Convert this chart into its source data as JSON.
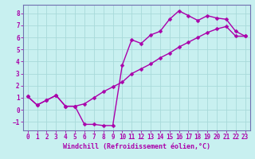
{
  "xlabel": "Windchill (Refroidissement éolien,°C)",
  "bg_color": "#c8f0f0",
  "line_color": "#aa00aa",
  "grid_color": "#a8dada",
  "spine_color": "#7070b0",
  "xlim": [
    -0.5,
    23.5
  ],
  "ylim": [
    -1.7,
    8.7
  ],
  "xticks": [
    0,
    1,
    2,
    3,
    4,
    5,
    6,
    7,
    8,
    9,
    10,
    11,
    12,
    13,
    14,
    15,
    16,
    17,
    18,
    19,
    20,
    21,
    22,
    23
  ],
  "yticks": [
    -1,
    0,
    1,
    2,
    3,
    4,
    5,
    6,
    7,
    8
  ],
  "curve1_x": [
    0,
    1,
    2,
    3,
    4,
    5,
    6,
    7,
    8,
    9,
    10,
    11,
    12,
    13,
    14,
    15,
    16,
    17,
    18,
    19,
    20,
    21,
    22,
    23
  ],
  "curve1_y": [
    1.1,
    0.4,
    0.8,
    1.2,
    0.3,
    0.3,
    -1.2,
    -1.2,
    -1.3,
    -1.3,
    3.7,
    5.8,
    5.5,
    6.2,
    6.5,
    7.5,
    8.2,
    7.8,
    7.4,
    7.8,
    7.6,
    7.5,
    6.5,
    6.1
  ],
  "curve2_x": [
    0,
    1,
    2,
    3,
    4,
    5,
    6,
    7,
    8,
    9,
    10,
    11,
    12,
    13,
    14,
    15,
    16,
    17,
    18,
    19,
    20,
    21,
    22,
    23
  ],
  "curve2_y": [
    1.1,
    0.4,
    0.8,
    1.2,
    0.3,
    0.3,
    0.5,
    1.0,
    1.5,
    1.9,
    2.3,
    3.0,
    3.4,
    3.8,
    4.3,
    4.7,
    5.2,
    5.6,
    6.0,
    6.4,
    6.7,
    6.9,
    6.1,
    6.1
  ],
  "marker": "D",
  "markersize": 2.5,
  "linewidth": 1.0,
  "tick_labelsize": 5.5,
  "xlabel_fontsize": 6.0
}
